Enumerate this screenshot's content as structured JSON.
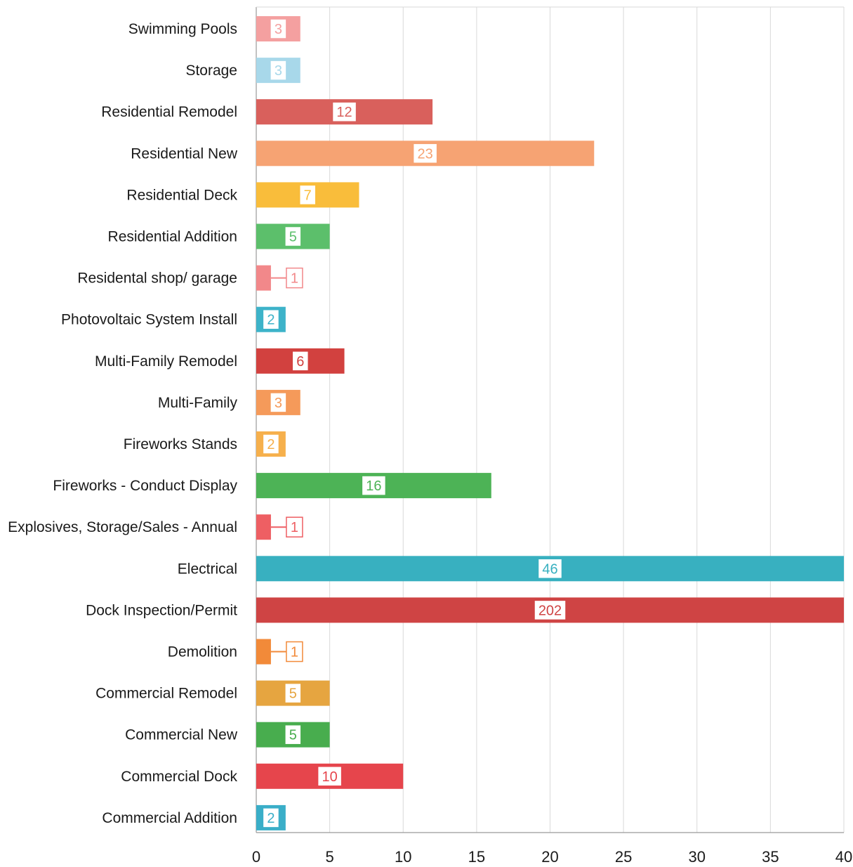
{
  "chart_data": {
    "type": "bar",
    "orientation": "horizontal",
    "title": "",
    "xlabel": "",
    "ylabel": "",
    "xlim": [
      0,
      40
    ],
    "x_ticks": [
      "0",
      "5",
      "10",
      "15",
      "20",
      "25",
      "30",
      "35",
      "40"
    ],
    "grid": true,
    "legend": "none",
    "categories": [
      "Swimming Pools",
      "Storage",
      "Residential Remodel",
      "Residential New",
      "Residential Deck",
      "Residential Addition",
      "Residental shop/ garage",
      "Photovoltaic System Install",
      "Multi-Family Remodel",
      "Multi-Family",
      "Fireworks Stands",
      "Fireworks - Conduct Display",
      "Explosives, Storage/Sales - Annual",
      "Electrical",
      "Dock Inspection/Permit",
      "Demolition",
      "Commercial Remodel",
      "Commercial New",
      "Commercial Dock",
      "Commercial Addition"
    ],
    "values": [
      3,
      3,
      12,
      23,
      7,
      5,
      1,
      2,
      6,
      3,
      2,
      16,
      1,
      46,
      202,
      1,
      5,
      5,
      10,
      2
    ],
    "data_labels": [
      "3",
      "3",
      "12",
      "23",
      "7",
      "5",
      "1",
      "2",
      "6",
      "3",
      "2",
      "16",
      "1",
      "46",
      "202",
      "1",
      "5",
      "5",
      "10",
      "2"
    ],
    "colors": [
      "#f4a0a0",
      "#a8d8ea",
      "#d9605c",
      "#f6a373",
      "#f9bd3b",
      "#5cbf6b",
      "#f2888a",
      "#3db3c9",
      "#d2413f",
      "#f59a5a",
      "#f6b04c",
      "#4db356",
      "#ee5f63",
      "#38b0c0",
      "#cf4444",
      "#f28a39",
      "#e6a540",
      "#48ad4e",
      "#e6454c",
      "#3aaec8"
    ]
  }
}
